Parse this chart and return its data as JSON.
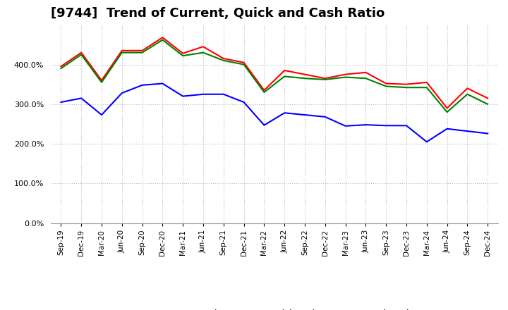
{
  "title": "[9744]  Trend of Current, Quick and Cash Ratio",
  "labels": [
    "Sep-19",
    "Dec-19",
    "Mar-20",
    "Jun-20",
    "Sep-20",
    "Dec-20",
    "Mar-21",
    "Jun-21",
    "Sep-21",
    "Dec-21",
    "Mar-22",
    "Jun-22",
    "Sep-22",
    "Dec-22",
    "Mar-23",
    "Jun-23",
    "Sep-23",
    "Dec-23",
    "Mar-24",
    "Jun-24",
    "Sep-24",
    "Dec-24"
  ],
  "current_ratio": [
    395,
    430,
    360,
    435,
    435,
    468,
    428,
    445,
    415,
    405,
    335,
    385,
    375,
    365,
    375,
    380,
    352,
    350,
    355,
    290,
    340,
    315
  ],
  "quick_ratio": [
    390,
    425,
    355,
    430,
    430,
    462,
    422,
    430,
    410,
    400,
    330,
    370,
    365,
    362,
    368,
    365,
    345,
    342,
    342,
    280,
    325,
    300
  ],
  "cash_ratio": [
    305,
    315,
    273,
    328,
    348,
    352,
    320,
    325,
    325,
    305,
    247,
    278,
    273,
    268,
    245,
    248,
    246,
    246,
    205,
    238,
    232,
    226
  ],
  "current_color": "#ff0000",
  "quick_color": "#008000",
  "cash_color": "#0000ff",
  "ylim": [
    0,
    500
  ],
  "yticks": [
    0,
    100,
    200,
    300,
    400
  ],
  "background_color": "#ffffff",
  "grid_color": "#bbbbbb",
  "title_fontsize": 13
}
